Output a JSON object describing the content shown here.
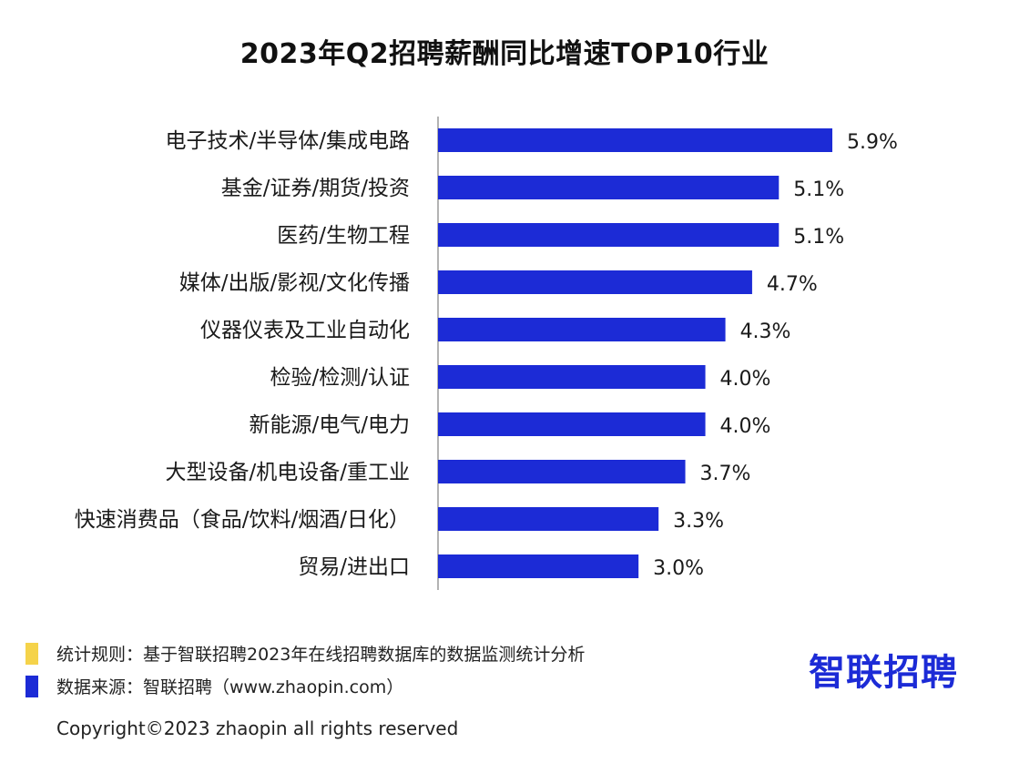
{
  "chart_data": {
    "type": "bar",
    "orientation": "horizontal",
    "title": "2023年Q2招聘薪酬同比增速TOP10行业",
    "categories": [
      "电子技术/半导体/集成电路",
      "基金/证券/期货/投资",
      "医药/生物工程",
      "媒体/出版/影视/文化传播",
      "仪器仪表及工业自动化",
      "检验/检测/认证",
      "新能源/电气/电力",
      "大型设备/机电设备/重工业",
      "快速消费品（食品/饮料/烟酒/日化）",
      "贸易/进出口"
    ],
    "values": [
      5.9,
      5.1,
      5.1,
      4.7,
      4.3,
      4.0,
      4.0,
      3.7,
      3.3,
      3.0
    ],
    "value_labels": [
      "5.9%",
      "5.1%",
      "5.1%",
      "4.7%",
      "4.3%",
      "4.0%",
      "4.0%",
      "3.7%",
      "3.3%",
      "3.0%"
    ],
    "xlim": [
      0,
      6
    ],
    "unit": "%",
    "grid": false,
    "bar_color": "#1c2bd6"
  },
  "notes": {
    "rule_text": "统计规则：基于智联招聘2023年在线招聘数据库的数据监测统计分析",
    "rule_color": "#f5d34a",
    "source_text": "数据来源：智联招聘（www.zhaopin.com）",
    "source_color": "#1c2bd6"
  },
  "logo": {
    "text": "智联招聘"
  },
  "copyright": "Copyright©2023 zhaopin all rights reserved"
}
